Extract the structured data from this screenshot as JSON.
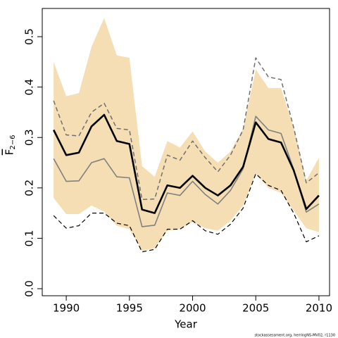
{
  "chart_data": {
    "type": "line",
    "xlabel": "Year",
    "ylabel": {
      "main": "F",
      "sub": "2−6"
    },
    "footnote": "stockassessment.org, herringNS-MV02, r1130",
    "x": [
      1989,
      1990,
      1991,
      1992,
      1993,
      1994,
      1995,
      1996,
      1997,
      1998,
      1999,
      2000,
      2001,
      2002,
      2003,
      2004,
      2005,
      2006,
      2007,
      2008,
      2009,
      2010
    ],
    "band": {
      "color": "#f5deb3",
      "upper": [
        0.45,
        0.382,
        0.388,
        0.48,
        0.537,
        0.463,
        0.458,
        0.243,
        0.222,
        0.293,
        0.28,
        0.312,
        0.272,
        0.25,
        0.272,
        0.318,
        0.435,
        0.398,
        0.398,
        0.32,
        0.215,
        0.26
      ],
      "lower": [
        0.18,
        0.148,
        0.148,
        0.165,
        0.153,
        0.125,
        0.118,
        0.075,
        0.08,
        0.115,
        0.118,
        0.132,
        0.12,
        0.115,
        0.135,
        0.165,
        0.228,
        0.2,
        0.19,
        0.155,
        0.12,
        0.112
      ]
    },
    "lines": [
      {
        "color": "#707070",
        "width": 1.5,
        "dash": "6 4",
        "values": [
          0.373,
          0.305,
          0.303,
          0.35,
          0.368,
          0.318,
          0.315,
          0.177,
          0.178,
          0.265,
          0.255,
          0.293,
          0.26,
          0.232,
          0.265,
          0.315,
          0.458,
          0.42,
          0.415,
          0.32,
          0.21,
          0.23
        ]
      },
      {
        "color": "#000000",
        "width": 1.2,
        "dash": "6 4",
        "values": [
          0.145,
          0.12,
          0.125,
          0.15,
          0.15,
          0.13,
          0.125,
          0.073,
          0.078,
          0.118,
          0.118,
          0.135,
          0.115,
          0.108,
          0.128,
          0.16,
          0.228,
          0.205,
          0.195,
          0.15,
          0.093,
          0.105
        ]
      },
      {
        "color": "#808080",
        "width": 1.6,
        "dash": "",
        "values": [
          0.258,
          0.213,
          0.214,
          0.25,
          0.258,
          0.222,
          0.22,
          0.123,
          0.126,
          0.19,
          0.185,
          0.213,
          0.187,
          0.168,
          0.195,
          0.238,
          0.342,
          0.315,
          0.308,
          0.237,
          0.152,
          0.168
        ]
      },
      {
        "color": "#000000",
        "width": 2.6,
        "dash": "",
        "values": [
          0.315,
          0.265,
          0.27,
          0.322,
          0.345,
          0.293,
          0.287,
          0.157,
          0.15,
          0.205,
          0.2,
          0.224,
          0.2,
          0.185,
          0.205,
          0.242,
          0.33,
          0.297,
          0.29,
          0.235,
          0.158,
          0.185
        ]
      }
    ],
    "xlim": [
      1988.1,
      2010.84
    ],
    "ylim": [
      -0.014,
      0.556
    ],
    "xticks": [
      1990,
      1995,
      2000,
      2005,
      2010
    ],
    "yticks": [
      {
        "value": 0,
        "label": "0.0"
      },
      0.1,
      0.2,
      0.3,
      0.4,
      0.5
    ]
  }
}
